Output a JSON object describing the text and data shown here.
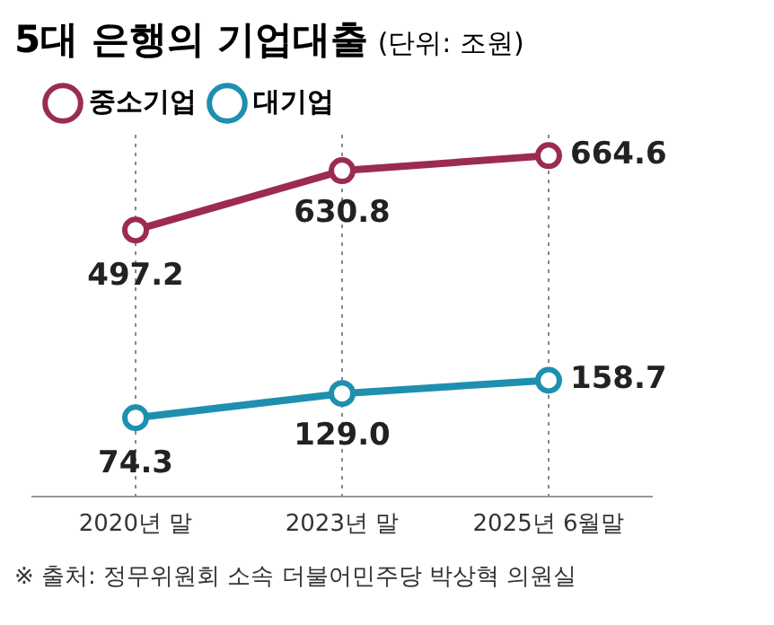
{
  "chart_data": {
    "type": "line",
    "title": "5대 은행의 기업대출",
    "subtitle": "(단위: 조원)",
    "categories": [
      "2020년 말",
      "2023년 말",
      "2025년 6월말"
    ],
    "series": [
      {
        "name": "중소기업",
        "color": "#9b2c4f",
        "values": [
          497.2,
          630.8,
          664.6
        ]
      },
      {
        "name": "대기업",
        "color": "#1f8fb0",
        "values": [
          74.3,
          129.0,
          158.7
        ],
        "value_labels": [
          "74.3",
          "129.0",
          "158.7"
        ]
      }
    ],
    "data_labels": true,
    "marker": "circle",
    "grid": "x",
    "legend": "top left",
    "relative": false,
    "annotations": [
      "※ 출처: 정무위원회 소속 더불어민주당 박상혁 의원실"
    ]
  }
}
